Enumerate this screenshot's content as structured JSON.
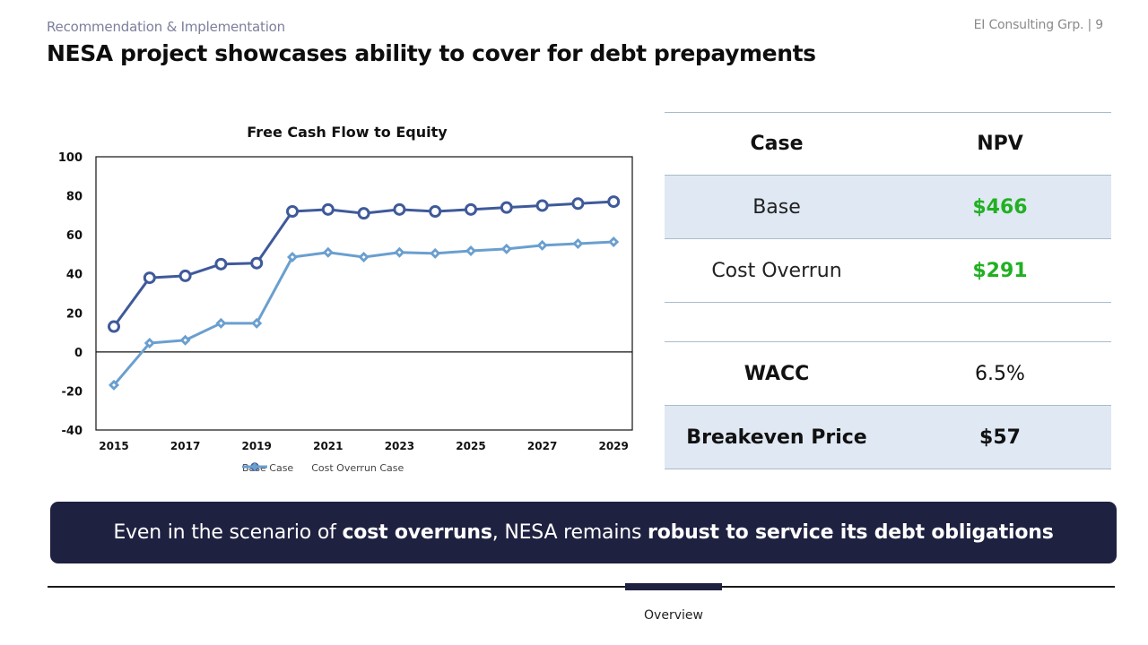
{
  "header": {
    "section": "Recommendation & Implementation",
    "page": "EI Consulting Grp. | 9",
    "title": "NESA project showcases ability to cover for debt prepayments"
  },
  "chart_data": {
    "type": "line",
    "title": "Free Cash Flow to Equity",
    "xlabel": "",
    "ylabel": "",
    "ylim": [
      -40,
      100
    ],
    "yticks": [
      100,
      80,
      60,
      40,
      20,
      0,
      -20,
      -40
    ],
    "x": [
      2015,
      2016,
      2017,
      2018,
      2019,
      2020,
      2021,
      2022,
      2023,
      2024,
      2025,
      2026,
      2027,
      2028,
      2029
    ],
    "xtick_labels": [
      "2015",
      "2017",
      "2019",
      "2021",
      "2023",
      "2025",
      "2027",
      "2029"
    ],
    "grid": false,
    "legend_position": "bottom",
    "series": [
      {
        "name": "Base Case",
        "color": "#3f5a9a",
        "marker": "circle",
        "values": [
          13,
          38,
          39,
          45,
          45.5,
          72,
          73,
          71,
          73,
          72,
          73,
          74,
          75,
          76,
          77
        ]
      },
      {
        "name": "Cost Overrun Case",
        "color": "#6a9fcf",
        "marker": "diamond",
        "values": [
          -17,
          4.5,
          6,
          14.7,
          14.7,
          48.6,
          51,
          48.6,
          51,
          50.5,
          51.8,
          52.8,
          54.6,
          55.5,
          56.4
        ]
      }
    ]
  },
  "kpi_table": {
    "headers": {
      "case": "Case",
      "npv": "NPV"
    },
    "rows": [
      {
        "case": "Base",
        "npv": "$466"
      },
      {
        "case": "Cost Overrun",
        "npv": "$291"
      }
    ],
    "metrics": [
      {
        "label": "WACC",
        "value": "6.5%"
      },
      {
        "label": "Breakeven Price",
        "value": "$57"
      }
    ],
    "colors": {
      "npv_positive": "#22b022",
      "shade": "#dfe8f3"
    }
  },
  "banner": {
    "part1": "Even in the scenario of ",
    "bold1": "cost overruns",
    "part2": ", NESA remains ",
    "bold2": "robust to service its debt obligations",
    "background": "#1e2140"
  },
  "footer": {
    "tab": "Overview"
  }
}
